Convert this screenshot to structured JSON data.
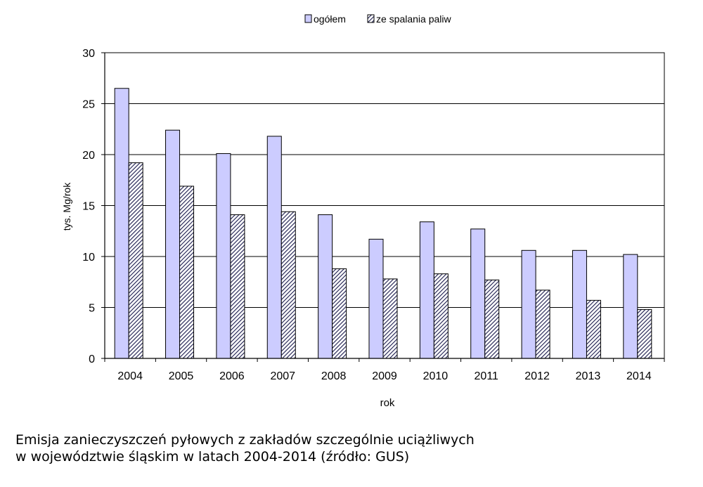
{
  "chart_data": {
    "type": "bar",
    "categories": [
      "2004",
      "2005",
      "2006",
      "2007",
      "2008",
      "2009",
      "2010",
      "2011",
      "2012",
      "2013",
      "2014"
    ],
    "series": [
      {
        "name": "ogółem",
        "values": [
          26.5,
          22.4,
          20.1,
          21.8,
          14.1,
          11.7,
          13.4,
          12.7,
          10.6,
          10.6,
          10.2
        ],
        "color": "#ccccff",
        "pattern": "solid"
      },
      {
        "name": "ze spalania paliw",
        "values": [
          19.2,
          16.9,
          14.1,
          14.4,
          8.8,
          7.8,
          8.3,
          7.7,
          6.7,
          5.7,
          4.8
        ],
        "color": "#9999cc",
        "pattern": "diagonal-hatch"
      }
    ],
    "title": "",
    "xlabel": "rok",
    "ylabel": "tys. Mg/rok",
    "ylim": [
      0,
      30
    ],
    "yticks": [
      0,
      5,
      10,
      15,
      20,
      25,
      30
    ],
    "grid": true,
    "legend_position": "top-center"
  },
  "caption": {
    "line1": "Emisja zanieczyszczeń pyłowych z zakładów szczególnie uciążliwych",
    "line2": "w województwie śląskim w latach 2004-2014 (źródło: GUS)"
  }
}
